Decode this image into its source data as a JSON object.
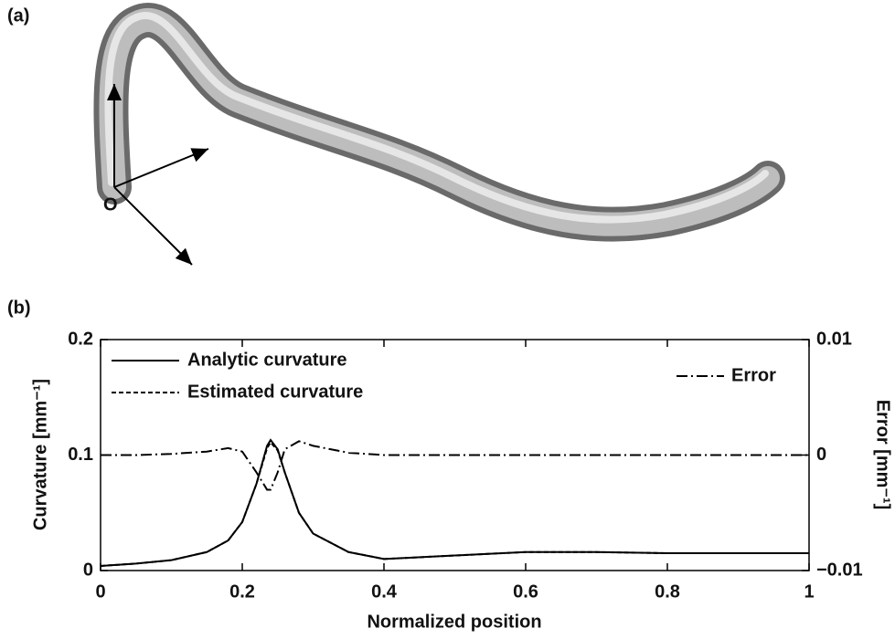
{
  "panel_labels": [
    "(a)",
    "(b)"
  ],
  "origin_label": "O",
  "chart_data": {
    "type": "line",
    "x_label": "Normalized position",
    "y_label": "Curvature [mm⁻¹]",
    "y2_label": "Error [mm⁻¹]",
    "x": [
      0,
      0.05,
      0.1,
      0.15,
      0.18,
      0.2,
      0.22,
      0.235,
      0.24,
      0.25,
      0.26,
      0.28,
      0.3,
      0.35,
      0.4,
      0.5,
      0.6,
      0.7,
      0.8,
      0.9,
      1
    ],
    "xlim": [
      0,
      1
    ],
    "xticks": [
      0,
      0.2,
      0.4,
      0.6,
      0.8,
      1
    ],
    "ylim": [
      0,
      0.2
    ],
    "yticks": [
      0,
      0.1,
      0.2
    ],
    "y2lim": [
      -0.01,
      0.01
    ],
    "y2ticks": [
      {
        "value": -0.01,
        "label": "−0.01"
      },
      0,
      0.01
    ],
    "series": [
      {
        "name": "Analytic curvature",
        "color": "#000000",
        "dash": "solid",
        "values": [
          0.004,
          0.006,
          0.009,
          0.016,
          0.026,
          0.042,
          0.075,
          0.108,
          0.113,
          0.105,
          0.085,
          0.05,
          0.032,
          0.016,
          0.01,
          0.013,
          0.016,
          0.016,
          0.015,
          0.015,
          0.015
        ]
      },
      {
        "name": "Estimated curvature",
        "color": "#000000",
        "dash": "dashed",
        "values": [
          0.004,
          0.006,
          0.009,
          0.016,
          0.026,
          0.042,
          0.075,
          0.106,
          0.111,
          0.104,
          0.085,
          0.05,
          0.032,
          0.016,
          0.01,
          0.013,
          0.016,
          0.016,
          0.015,
          0.015,
          0.015
        ]
      },
      {
        "name": "Error",
        "color": "#000000",
        "dash": "dashdot",
        "axis": "y2",
        "values": [
          0,
          0,
          0.0001,
          0.0003,
          0.0006,
          0.0003,
          -0.0015,
          -0.003,
          -0.003,
          -0.0015,
          0.0005,
          0.0012,
          0.0008,
          0.0002,
          0,
          0,
          0,
          0,
          0,
          0,
          0
        ]
      }
    ]
  }
}
